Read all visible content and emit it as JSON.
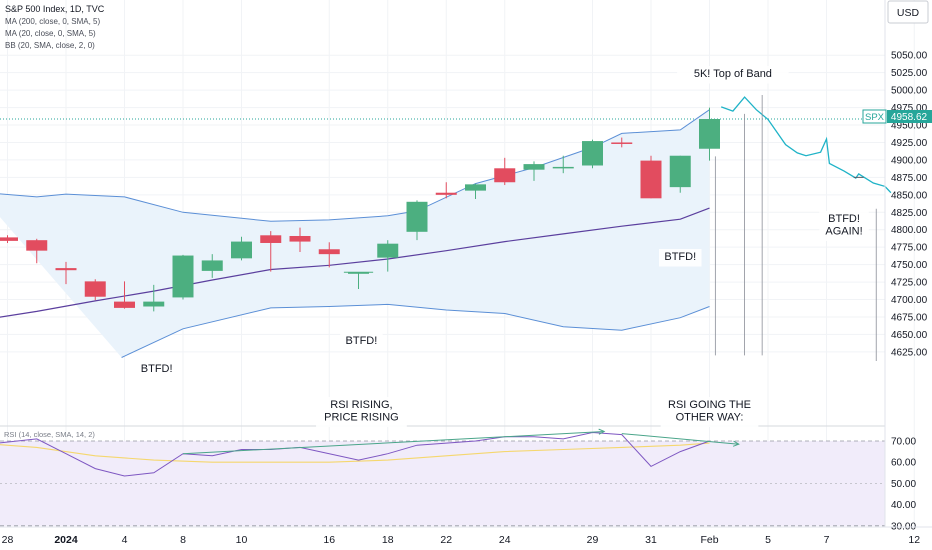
{
  "header": {
    "symbol_line": "S&P 500 Index, 1D, TVC",
    "indicators": [
      "MA (200, close, 0, SMA, 5)",
      "MA (20, close, 0, SMA, 5)",
      "BB (20, SMA, close, 2, 0)"
    ]
  },
  "currency": "USD",
  "last_price": {
    "ticker": "SPX",
    "value": "4958.62"
  },
  "rsi_label": "RSI (14, close, SMA, 14, 2)",
  "annotations": [
    {
      "text": "BTFD!",
      "date": "5"
    },
    {
      "text": "BTFD!",
      "date": "17"
    },
    {
      "text": "RSI RISING,\nPRICE RISING",
      "date": "17"
    },
    {
      "text": "BTFD!",
      "date": "Feb 2"
    },
    {
      "text": "RSI GOING THE\nOTHER WAY:",
      "date": "Feb 5"
    },
    {
      "text": "5K! Top of Band",
      "date": "Feb 5"
    },
    {
      "text": "BTFD!\nAGAIN!",
      "date": "Feb 9"
    }
  ],
  "colors": {
    "up": "#4caf80",
    "down": "#e24c5f",
    "band": "#5b8fd6",
    "band_fill": "#eaf3fb",
    "ma20": "#5b3f9e",
    "projection": "#1fb3c7",
    "rsi": "#7e57c2",
    "rsi_ma": "#f5d76e",
    "rsi_bg": "#f1ecfa",
    "trend": "#4aa58a"
  },
  "chart_data": {
    "type": "candlestick",
    "title": "S&P 500 Index, 1D, TVC",
    "price_axis": {
      "ticks": [
        4625,
        4650,
        4675,
        4700,
        4725,
        4750,
        4775,
        4800,
        4825,
        4850,
        4875,
        4900,
        4925,
        4950,
        4975,
        5000,
        5025,
        5050
      ],
      "labels": [
        "4625.00",
        "4650.00",
        "4675.00",
        "4700.00",
        "4725.00",
        "4750.00",
        "4775.00",
        "4800.00",
        "4825.00",
        "4850.00",
        "4875.00",
        "4900.00",
        "4925.00",
        "4950.00",
        "4975.00",
        "5000.00",
        "5025.00",
        "5050.00"
      ]
    },
    "rsi_axis": {
      "ticks": [
        30,
        40,
        50,
        60,
        70
      ],
      "labels": [
        "30.00",
        "40.00",
        "50.00",
        "60.00",
        "70.00"
      ],
      "ylim": [
        28,
        74
      ]
    },
    "x_labels": [
      {
        "day": 0,
        "text": "28"
      },
      {
        "day": 2,
        "text": "2024"
      },
      {
        "day": 4,
        "text": "4"
      },
      {
        "day": 6,
        "text": "8"
      },
      {
        "day": 8,
        "text": "10"
      },
      {
        "day": 11,
        "text": "16"
      },
      {
        "day": 13,
        "text": "18"
      },
      {
        "day": 15,
        "text": "22"
      },
      {
        "day": 17,
        "text": "24"
      },
      {
        "day": 20,
        "text": "29"
      },
      {
        "day": 22,
        "text": "31"
      },
      {
        "day": 24,
        "text": "Feb"
      },
      {
        "day": 26,
        "text": "5"
      },
      {
        "day": 28,
        "text": "7"
      },
      {
        "day": 31,
        "text": "12"
      }
    ],
    "candles": [
      {
        "day": 0,
        "date": "Dec 28",
        "o": 4789,
        "h": 4792,
        "l": 4781,
        "c": 4784
      },
      {
        "day": 1,
        "date": "Dec 29",
        "o": 4785,
        "h": 4787,
        "l": 4752,
        "c": 4770
      },
      {
        "day": 2,
        "date": "Jan 2",
        "o": 4745,
        "h": 4754,
        "l": 4722,
        "c": 4742
      },
      {
        "day": 3,
        "date": "Jan 3",
        "o": 4726,
        "h": 4729,
        "l": 4699,
        "c": 4704
      },
      {
        "day": 4,
        "date": "Jan 4",
        "o": 4697,
        "h": 4726,
        "l": 4687,
        "c": 4688
      },
      {
        "day": 5,
        "date": "Jan 5",
        "o": 4690,
        "h": 4721,
        "l": 4683,
        "c": 4697
      },
      {
        "day": 6,
        "date": "Jan 8",
        "o": 4703,
        "h": 4764,
        "l": 4700,
        "c": 4763
      },
      {
        "day": 7,
        "date": "Jan 9",
        "o": 4741,
        "h": 4765,
        "l": 4731,
        "c": 4756
      },
      {
        "day": 8,
        "date": "Jan 10",
        "o": 4759,
        "h": 4790,
        "l": 4756,
        "c": 4783
      },
      {
        "day": 9,
        "date": "Jan 11",
        "o": 4792,
        "h": 4798,
        "l": 4740,
        "c": 4781
      },
      {
        "day": 10,
        "date": "Jan 12",
        "o": 4791,
        "h": 4803,
        "l": 4768,
        "c": 4783
      },
      {
        "day": 11,
        "date": "Jan 16",
        "o": 4772,
        "h": 4782,
        "l": 4746,
        "c": 4765
      },
      {
        "day": 12,
        "date": "Jan 17",
        "o": 4739,
        "h": 4739,
        "l": 4715,
        "c": 4739
      },
      {
        "day": 13,
        "date": "Jan 18",
        "o": 4760,
        "h": 4785,
        "l": 4740,
        "c": 4780
      },
      {
        "day": 14,
        "date": "Jan 19",
        "o": 4797,
        "h": 4842,
        "l": 4785,
        "c": 4840
      },
      {
        "day": 15,
        "date": "Jan 22",
        "o": 4853,
        "h": 4868,
        "l": 4845,
        "c": 4850
      },
      {
        "day": 16,
        "date": "Jan 23",
        "o": 4856,
        "h": 4866,
        "l": 4844,
        "c": 4865
      },
      {
        "day": 17,
        "date": "Jan 24",
        "o": 4888,
        "h": 4903,
        "l": 4864,
        "c": 4868
      },
      {
        "day": 18,
        "date": "Jan 25",
        "o": 4886,
        "h": 4898,
        "l": 4870,
        "c": 4894
      },
      {
        "day": 19,
        "date": "Jan 26",
        "o": 4888,
        "h": 4906,
        "l": 4881,
        "c": 4890
      },
      {
        "day": 20,
        "date": "Jan 29",
        "o": 4892,
        "h": 4929,
        "l": 4888,
        "c": 4927
      },
      {
        "day": 21,
        "date": "Jan 30",
        "o": 4925,
        "h": 4932,
        "l": 4918,
        "c": 4924
      },
      {
        "day": 22,
        "date": "Jan 31",
        "o": 4899,
        "h": 4906,
        "l": 4845,
        "c": 4845
      },
      {
        "day": 23,
        "date": "Feb 1",
        "o": 4861,
        "h": 4906,
        "l": 4853,
        "c": 4906
      },
      {
        "day": 24,
        "date": "Feb 2",
        "o": 4916,
        "h": 4975,
        "l": 4899,
        "c": 4958.62
      }
    ],
    "bb_upper": [
      [
        -1,
        4854
      ],
      [
        1,
        4847
      ],
      [
        2,
        4851
      ],
      [
        4,
        4847
      ],
      [
        6,
        4825
      ],
      [
        9,
        4812
      ],
      [
        11,
        4814
      ],
      [
        13,
        4820
      ],
      [
        14,
        4827
      ],
      [
        16,
        4866
      ],
      [
        18,
        4889
      ],
      [
        20,
        4918
      ],
      [
        21,
        4938
      ],
      [
        23,
        4943
      ],
      [
        24,
        4972
      ]
    ],
    "bb_lower": [
      [
        3.9,
        4617
      ],
      [
        6,
        4658
      ],
      [
        9,
        4688
      ],
      [
        11,
        4690
      ],
      [
        13,
        4693
      ],
      [
        15,
        4685
      ],
      [
        17,
        4680
      ],
      [
        19,
        4661
      ],
      [
        21,
        4656
      ],
      [
        23,
        4674
      ],
      [
        24,
        4690
      ]
    ],
    "ma20": [
      [
        -1,
        4670
      ],
      [
        1,
        4683
      ],
      [
        3,
        4698
      ],
      [
        5,
        4712
      ],
      [
        7,
        4728
      ],
      [
        9,
        4743
      ],
      [
        11,
        4749
      ],
      [
        13,
        4758
      ],
      [
        15,
        4770
      ],
      [
        17,
        4783
      ],
      [
        19,
        4794
      ],
      [
        21,
        4805
      ],
      [
        23,
        4815
      ],
      [
        24,
        4831
      ]
    ],
    "projection": [
      [
        24.4,
        4976
      ],
      [
        24.8,
        4970
      ],
      [
        25.2,
        4990
      ],
      [
        25.6,
        4972
      ],
      [
        26.0,
        4958
      ],
      [
        26.3,
        4940
      ],
      [
        26.6,
        4922
      ],
      [
        27.0,
        4910
      ],
      [
        27.3,
        4906
      ],
      [
        27.8,
        4911
      ],
      [
        28.0,
        4930
      ],
      [
        28.1,
        4895
      ],
      [
        28.6,
        4884
      ],
      [
        29.0,
        4874
      ],
      [
        29.1,
        4880
      ],
      [
        29.6,
        4867
      ],
      [
        30.0,
        4862
      ],
      [
        30.2,
        4853
      ]
    ],
    "projection_marker_day": 29.1,
    "rsi": [
      [
        -1,
        68
      ],
      [
        1,
        71
      ],
      [
        2,
        64
      ],
      [
        3,
        57
      ],
      [
        4,
        53.5
      ],
      [
        5,
        55
      ],
      [
        6,
        64
      ],
      [
        7,
        63
      ],
      [
        8,
        66
      ],
      [
        9,
        66
      ],
      [
        10,
        67
      ],
      [
        11,
        64
      ],
      [
        12,
        61
      ],
      [
        13,
        64
      ],
      [
        14,
        68
      ],
      [
        15,
        69
      ],
      [
        16,
        70
      ],
      [
        17,
        72
      ],
      [
        18,
        72
      ],
      [
        19,
        71
      ],
      [
        20,
        74
      ],
      [
        21,
        73
      ],
      [
        22,
        58
      ],
      [
        23,
        65
      ],
      [
        24,
        70
      ]
    ],
    "rsi_ma": [
      [
        -1,
        69
      ],
      [
        1,
        67
      ],
      [
        3,
        63
      ],
      [
        5,
        61
      ],
      [
        7,
        60
      ],
      [
        9,
        60
      ],
      [
        11,
        60
      ],
      [
        13,
        61
      ],
      [
        15,
        63
      ],
      [
        17,
        65
      ],
      [
        19,
        66
      ],
      [
        21,
        67
      ],
      [
        23,
        68
      ],
      [
        24,
        69
      ]
    ],
    "rsi_trend_a": [
      [
        6,
        64
      ],
      [
        20.4,
        74.5
      ]
    ],
    "rsi_trend_b": [
      [
        21,
        73.5
      ],
      [
        25,
        68.5
      ]
    ]
  }
}
